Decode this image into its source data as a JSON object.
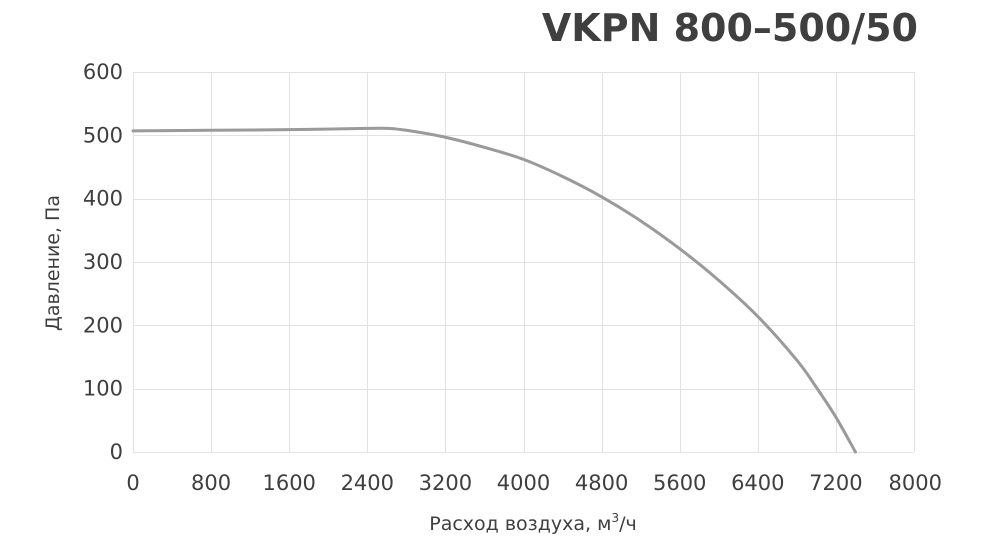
{
  "chart_data": {
    "type": "line",
    "title": "VKPN 800–500/50",
    "xlabel": "Расход воздуха, м",
    "xlabel_sup": "3",
    "xlabel_tail": "/ч",
    "ylabel": "Давление, Па",
    "xlim": [
      0,
      8000
    ],
    "ylim": [
      0,
      600
    ],
    "xticks": [
      "0",
      "800",
      "1600",
      "2400",
      "3200",
      "4000",
      "4800",
      "5600",
      "6400",
      "7200",
      "8000"
    ],
    "yticks": [
      "0",
      "100",
      "200",
      "300",
      "400",
      "500",
      "600"
    ],
    "grid": true,
    "line_color": "#9a9a9a",
    "series": [
      {
        "x": [
          0,
          800,
          1600,
          2400,
          2600,
          2800,
          3200,
          3600,
          4000,
          4400,
          4800,
          5200,
          5600,
          6000,
          6400,
          6800,
          7000,
          7200,
          7400
        ],
        "y": [
          507,
          508,
          509,
          511,
          511,
          508,
          497,
          481,
          462,
          435,
          403,
          365,
          321,
          271,
          214,
          145,
          102,
          55,
          0
        ]
      }
    ]
  }
}
